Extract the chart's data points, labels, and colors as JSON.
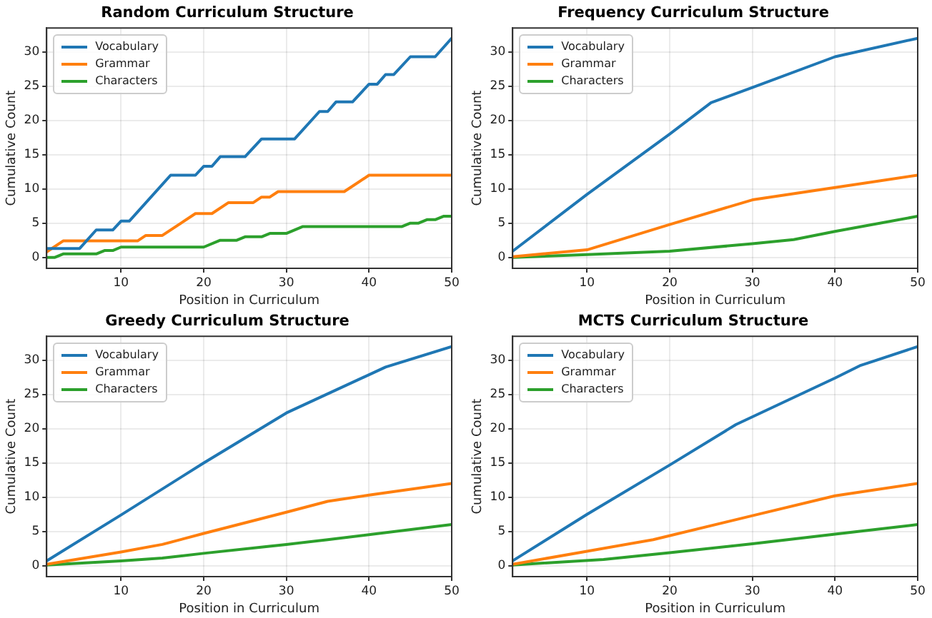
{
  "chart_data": [
    {
      "type": "line",
      "title": "Random Curriculum Structure",
      "xlabel": "Position in Curriculum",
      "ylabel": "Cumulative Count",
      "xlim": [
        1,
        50
      ],
      "xticks": [
        10,
        20,
        30,
        40,
        50
      ],
      "ylim": [
        -1.6,
        33.5
      ],
      "yticks": [
        0,
        5,
        10,
        15,
        20,
        25,
        30
      ],
      "grid": true,
      "legend": "top left",
      "series": [
        {
          "name": "Vocabulary",
          "color": "#1f77b4",
          "x": [
            1,
            5,
            7,
            9,
            10,
            11,
            16,
            19,
            20,
            21,
            22,
            25,
            27,
            31,
            34,
            35,
            36,
            38,
            40,
            41,
            42,
            43,
            45,
            48,
            50
          ],
          "values": [
            1.3,
            1.3,
            4,
            4,
            5.3,
            5.3,
            12,
            12,
            13.3,
            13.3,
            14.7,
            14.7,
            17.3,
            17.3,
            21.3,
            21.3,
            22.7,
            22.7,
            25.3,
            25.3,
            26.7,
            26.7,
            29.3,
            29.3,
            32
          ]
        },
        {
          "name": "Grammar",
          "color": "#ff7f0e",
          "x": [
            1,
            3,
            12,
            13,
            15,
            19,
            21,
            23,
            26,
            27,
            28,
            29,
            37,
            40,
            50
          ],
          "values": [
            0.8,
            2.4,
            2.4,
            3.2,
            3.2,
            6.4,
            6.4,
            8,
            8,
            8.8,
            8.8,
            9.6,
            9.6,
            12,
            12
          ]
        },
        {
          "name": "Characters",
          "color": "#2ca02c",
          "x": [
            1,
            2,
            3,
            7,
            8,
            9,
            10,
            20,
            22,
            24,
            25,
            27,
            28,
            30,
            32,
            44,
            45,
            46,
            47,
            48,
            49,
            50
          ],
          "values": [
            0,
            0,
            0.5,
            0.5,
            1,
            1,
            1.5,
            1.5,
            2.5,
            2.5,
            3,
            3,
            3.5,
            3.5,
            4.5,
            4.5,
            5,
            5,
            5.5,
            5.5,
            6,
            6
          ]
        }
      ]
    },
    {
      "type": "line",
      "title": "Frequency Curriculum Structure",
      "xlabel": "Position in Curriculum",
      "ylabel": "Cumulative Count",
      "xlim": [
        1,
        50
      ],
      "xticks": [
        10,
        20,
        30,
        40,
        50
      ],
      "ylim": [
        -1.6,
        33.5
      ],
      "yticks": [
        0,
        5,
        10,
        15,
        20,
        25,
        30
      ],
      "grid": true,
      "legend": "top left",
      "series": [
        {
          "name": "Vocabulary",
          "color": "#1f77b4",
          "x": [
            1,
            10,
            20,
            25,
            30,
            40,
            50
          ],
          "values": [
            0.9,
            9.2,
            18,
            22.6,
            24.8,
            29.3,
            32
          ]
        },
        {
          "name": "Grammar",
          "color": "#ff7f0e",
          "x": [
            1,
            10,
            20,
            30,
            40,
            50
          ],
          "values": [
            0.1,
            1.1,
            4.8,
            8.4,
            10.2,
            12
          ]
        },
        {
          "name": "Characters",
          "color": "#2ca02c",
          "x": [
            1,
            10,
            20,
            30,
            35,
            40,
            50
          ],
          "values": [
            0,
            0.4,
            0.9,
            2,
            2.6,
            3.8,
            6
          ]
        }
      ]
    },
    {
      "type": "line",
      "title": "Greedy Curriculum Structure",
      "xlabel": "Position in Curriculum",
      "ylabel": "Cumulative Count",
      "xlim": [
        1,
        50
      ],
      "xticks": [
        10,
        20,
        30,
        40,
        50
      ],
      "ylim": [
        -1.6,
        33.5
      ],
      "yticks": [
        0,
        5,
        10,
        15,
        20,
        25,
        30
      ],
      "grid": true,
      "legend": "top left",
      "series": [
        {
          "name": "Vocabulary",
          "color": "#1f77b4",
          "x": [
            1,
            10,
            20,
            30,
            42,
            50
          ],
          "values": [
            0.7,
            7.4,
            15,
            22.3,
            29,
            32
          ]
        },
        {
          "name": "Grammar",
          "color": "#ff7f0e",
          "x": [
            1,
            10,
            15,
            20,
            30,
            35,
            40,
            50
          ],
          "values": [
            0.2,
            2,
            3.1,
            4.7,
            7.8,
            9.4,
            10.3,
            12
          ]
        },
        {
          "name": "Characters",
          "color": "#2ca02c",
          "x": [
            1,
            10,
            15,
            20,
            30,
            35,
            50
          ],
          "values": [
            0.1,
            0.7,
            1.1,
            1.8,
            3.1,
            3.8,
            6
          ]
        }
      ]
    },
    {
      "type": "line",
      "title": "MCTS Curriculum Structure",
      "xlabel": "Position in Curriculum",
      "ylabel": "Cumulative Count",
      "xlim": [
        1,
        50
      ],
      "xticks": [
        10,
        20,
        30,
        40,
        50
      ],
      "ylim": [
        -1.6,
        33.5
      ],
      "yticks": [
        0,
        5,
        10,
        15,
        20,
        25,
        30
      ],
      "grid": true,
      "legend": "top left",
      "series": [
        {
          "name": "Vocabulary",
          "color": "#1f77b4",
          "x": [
            1,
            10,
            20,
            28,
            40,
            43,
            50
          ],
          "values": [
            0.7,
            7.5,
            14.7,
            20.6,
            27.4,
            29.2,
            32
          ]
        },
        {
          "name": "Grammar",
          "color": "#ff7f0e",
          "x": [
            1,
            10,
            18,
            30,
            40,
            50
          ],
          "values": [
            0.2,
            2.1,
            3.8,
            7.3,
            10.2,
            12
          ]
        },
        {
          "name": "Characters",
          "color": "#2ca02c",
          "x": [
            1,
            12,
            20,
            30,
            40,
            50
          ],
          "values": [
            0.1,
            0.9,
            1.9,
            3.2,
            4.6,
            6
          ]
        }
      ]
    }
  ]
}
